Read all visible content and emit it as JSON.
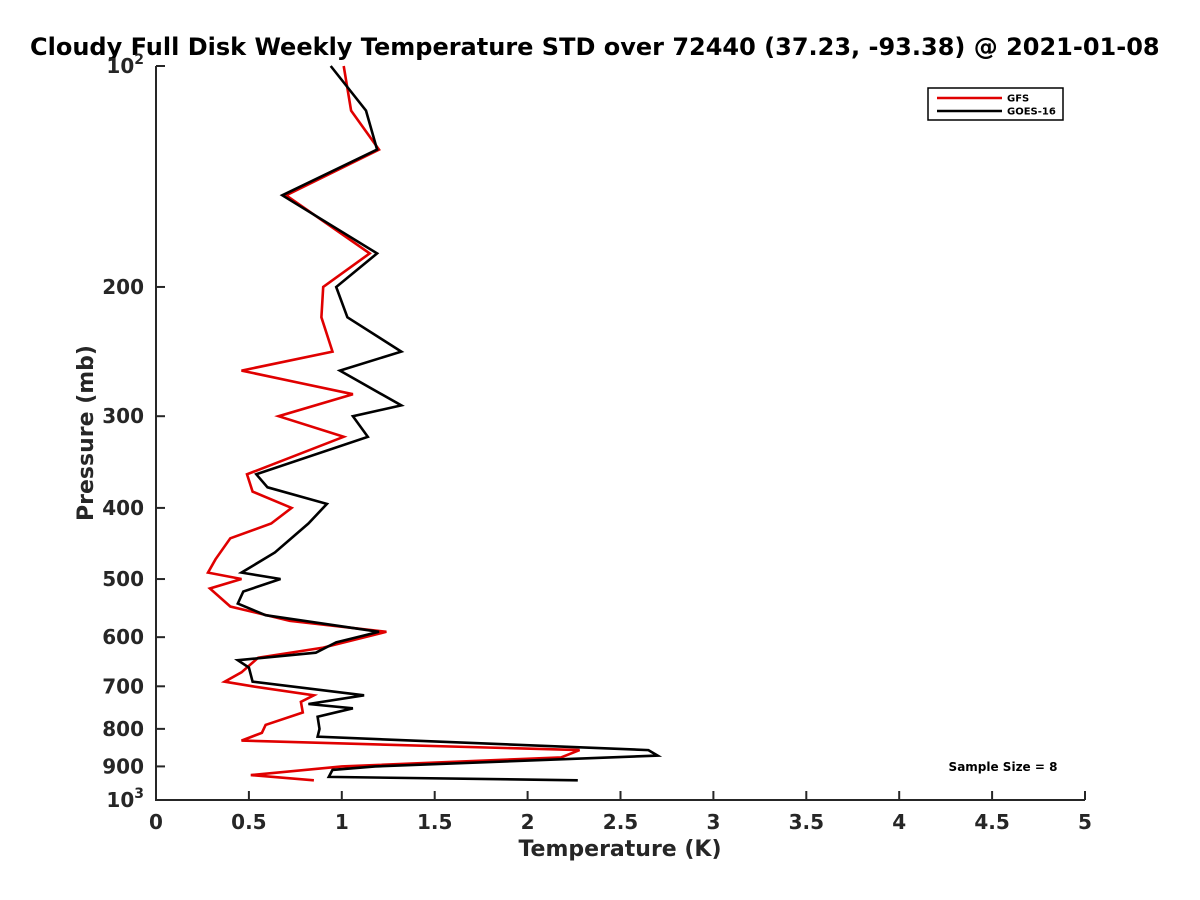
{
  "chart_data": {
    "type": "line",
    "title": "Cloudy Full Disk Weekly Temperature STD over 72440 (37.23, -93.38) @ 2021-01-08",
    "xlabel": "Temperature (K)",
    "ylabel": "Pressure (mb)",
    "xlim": [
      0,
      5
    ],
    "ylim": [
      100,
      1000
    ],
    "y_scale": "log",
    "y_reversed": true,
    "x_ticks": [
      "0",
      "0.5",
      "1",
      "1.5",
      "2",
      "2.5",
      "3",
      "3.5",
      "4",
      "4.5",
      "5"
    ],
    "y_ticks": [
      {
        "value": 100,
        "base": "10",
        "exp": "2"
      },
      {
        "value": 200,
        "label": "200"
      },
      {
        "value": 300,
        "label": "300"
      },
      {
        "value": 400,
        "label": "400"
      },
      {
        "value": 500,
        "label": "500"
      },
      {
        "value": 600,
        "label": "600"
      },
      {
        "value": 700,
        "label": "700"
      },
      {
        "value": 800,
        "label": "800"
      },
      {
        "value": 900,
        "label": "900"
      },
      {
        "value": 1000,
        "base": "10",
        "exp": "3"
      }
    ],
    "grid": false,
    "legend_position": "top-right",
    "annotation": "Sample Size = 8",
    "series": [
      {
        "name": "GFS",
        "color": "#e00000",
        "points": [
          [
            1.01,
            100
          ],
          [
            1.05,
            115
          ],
          [
            1.2,
            130
          ],
          [
            0.7,
            150
          ],
          [
            1.15,
            180
          ],
          [
            0.9,
            200
          ],
          [
            0.89,
            220
          ],
          [
            0.95,
            245
          ],
          [
            0.46,
            260
          ],
          [
            1.06,
            280
          ],
          [
            0.66,
            300
          ],
          [
            1.01,
            320
          ],
          [
            0.49,
            360
          ],
          [
            0.52,
            380
          ],
          [
            0.73,
            400
          ],
          [
            0.62,
            420
          ],
          [
            0.4,
            440
          ],
          [
            0.32,
            470
          ],
          [
            0.28,
            490
          ],
          [
            0.46,
            500
          ],
          [
            0.29,
            515
          ],
          [
            0.4,
            545
          ],
          [
            0.72,
            570
          ],
          [
            1.24,
            590
          ],
          [
            0.9,
            620
          ],
          [
            0.55,
            640
          ],
          [
            0.46,
            670
          ],
          [
            0.37,
            690
          ],
          [
            0.52,
            700
          ],
          [
            0.85,
            720
          ],
          [
            0.78,
            735
          ],
          [
            0.79,
            760
          ],
          [
            0.59,
            790
          ],
          [
            0.57,
            810
          ],
          [
            0.46,
            830
          ],
          [
            2.28,
            855
          ],
          [
            2.18,
            875
          ],
          [
            1.0,
            900
          ],
          [
            0.51,
            925
          ],
          [
            0.85,
            940
          ]
        ]
      },
      {
        "name": "GOES-16",
        "color": "#000000",
        "points": [
          [
            0.94,
            100
          ],
          [
            1.13,
            115
          ],
          [
            1.19,
            130
          ],
          [
            0.68,
            150
          ],
          [
            1.19,
            180
          ],
          [
            0.97,
            200
          ],
          [
            1.03,
            220
          ],
          [
            1.32,
            245
          ],
          [
            0.99,
            260
          ],
          [
            1.32,
            290
          ],
          [
            1.06,
            300
          ],
          [
            1.14,
            320
          ],
          [
            0.54,
            360
          ],
          [
            0.6,
            375
          ],
          [
            0.92,
            395
          ],
          [
            0.82,
            420
          ],
          [
            0.64,
            460
          ],
          [
            0.46,
            490
          ],
          [
            0.67,
            500
          ],
          [
            0.47,
            520
          ],
          [
            0.44,
            540
          ],
          [
            0.59,
            560
          ],
          [
            1.2,
            590
          ],
          [
            0.97,
            610
          ],
          [
            0.86,
            630
          ],
          [
            0.44,
            645
          ],
          [
            0.5,
            660
          ],
          [
            0.52,
            690
          ],
          [
            1.12,
            720
          ],
          [
            0.82,
            740
          ],
          [
            1.06,
            750
          ],
          [
            0.87,
            770
          ],
          [
            0.88,
            800
          ],
          [
            0.87,
            820
          ],
          [
            2.65,
            855
          ],
          [
            2.7,
            870
          ],
          [
            1.18,
            900
          ],
          [
            0.95,
            910
          ],
          [
            0.93,
            930
          ],
          [
            2.27,
            940
          ]
        ]
      }
    ]
  }
}
